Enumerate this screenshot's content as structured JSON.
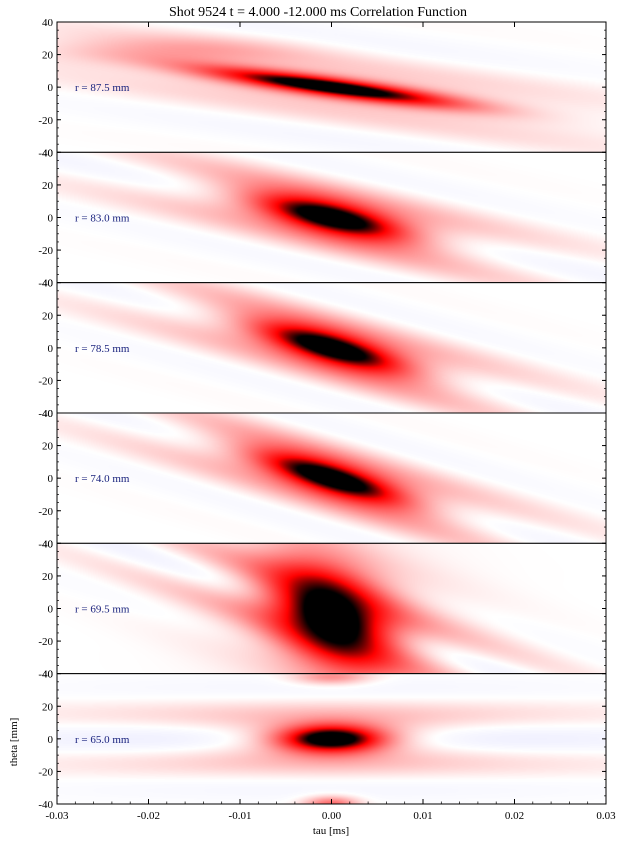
{
  "chart_data": {
    "type": "heatmap",
    "title": "Shot  9524   t = 4.000 -12.000 ms   Correlation Function",
    "xlabel": "tau [ms]",
    "ylabel": "theta [mm]",
    "xlim": [
      -0.03,
      0.03
    ],
    "ylim": [
      -40,
      40
    ],
    "x_ticks": [
      "-0.03",
      "-0.02",
      "-0.01",
      "0.00",
      "0.01",
      "0.02",
      "0.03"
    ],
    "y_ticks": [
      "40",
      "20",
      "0",
      "-20",
      "-40"
    ],
    "colors": {
      "positive": "#ff0000",
      "peak": "#000000",
      "negative": "#6e6eff",
      "zero": "#ffffff"
    },
    "panels": [
      {
        "label": "r = 87.5 mm",
        "peak_tau": 0.0,
        "peak_theta": 0,
        "tilt": -0.55,
        "amplitude": 1.0
      },
      {
        "label": "r = 83.0 mm",
        "peak_tau": 0.0,
        "peak_theta": 0,
        "tilt": -0.9,
        "amplitude": 1.0
      },
      {
        "label": "r = 78.5 mm",
        "peak_tau": 0.0,
        "peak_theta": 0,
        "tilt": -1.1,
        "amplitude": 1.0
      },
      {
        "label": "r = 74.0 mm",
        "peak_tau": 0.0,
        "peak_theta": 0,
        "tilt": -1.2,
        "amplitude": 1.0
      },
      {
        "label": "r = 69.5 mm",
        "peak_tau": 0.0,
        "peak_theta": -5,
        "tilt": -1.4,
        "amplitude": 1.0
      },
      {
        "label": "r = 65.0 mm",
        "peak_tau": 0.0,
        "peak_theta": 0,
        "tilt": 0.0,
        "amplitude": 1.0
      }
    ]
  }
}
